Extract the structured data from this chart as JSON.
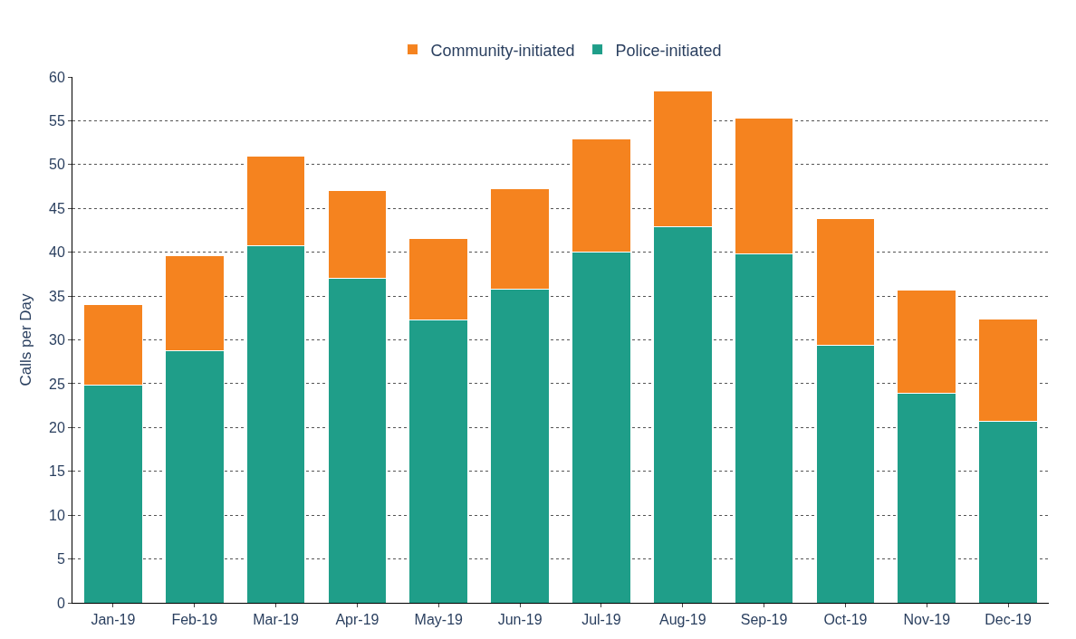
{
  "chart_data": {
    "type": "bar",
    "stacked": true,
    "ylabel": "Calls per Day",
    "categories": [
      "Jan-19",
      "Feb-19",
      "Mar-19",
      "Apr-19",
      "May-19",
      "Jun-19",
      "Jul-19",
      "Aug-19",
      "Sep-19",
      "Oct-19",
      "Nov-19",
      "Dec-19"
    ],
    "series": [
      {
        "name": "Police-initiated",
        "color": "#1f9e89",
        "values": [
          24.8,
          28.8,
          40.7,
          37.0,
          32.3,
          35.8,
          40.0,
          42.9,
          39.8,
          29.4,
          23.9,
          20.7
        ]
      },
      {
        "name": "Community-initiated",
        "color": "#f5831f",
        "values": [
          9.2,
          10.8,
          10.3,
          10.0,
          9.3,
          11.4,
          12.9,
          15.5,
          15.5,
          14.4,
          11.8,
          11.7
        ]
      }
    ],
    "ylim": [
      0,
      60
    ],
    "yticks": [
      0,
      5,
      10,
      15,
      20,
      25,
      30,
      35,
      40,
      45,
      50,
      55,
      60
    ],
    "grid": "y",
    "legend": "top"
  }
}
